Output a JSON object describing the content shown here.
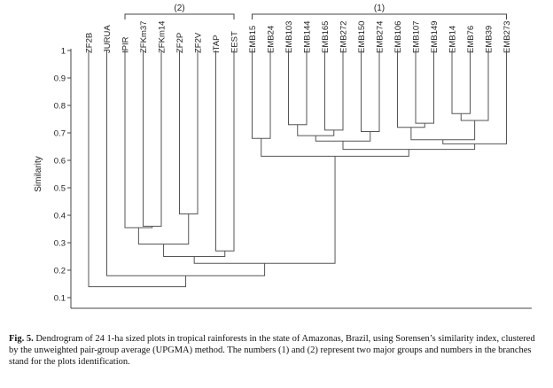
{
  "chart_data": {
    "type": "dendrogram",
    "ylabel": "Similarity",
    "ylim": [
      0.1,
      1
    ],
    "yticks": [
      1,
      0.9,
      0.8,
      0.7,
      0.6,
      0.5,
      0.4,
      0.3,
      0.2,
      0.1
    ],
    "leaves": [
      "ZF2B",
      "JURUA",
      "IPIR",
      "ZFKm37",
      "ZFKm14",
      "ZF2P",
      "ZF2V",
      "ITAP",
      "EEST",
      "EMB15",
      "EMB24",
      "EMB103",
      "EMB144",
      "EMB165",
      "EMB272",
      "EMB150",
      "EMB274",
      "EMB106",
      "EMB107",
      "EMB149",
      "EMB14",
      "EMB76",
      "EMB39",
      "EMB273"
    ],
    "groups": [
      {
        "label": "(2)",
        "from_leaf": 2,
        "to_leaf": 8
      },
      {
        "label": "(1)",
        "from_leaf": 9,
        "to_leaf": 23
      }
    ],
    "merges": [
      {
        "left": [
          "ZFKm37"
        ],
        "right": [
          "ZFKm14"
        ],
        "similarity": 0.36
      },
      {
        "left": [
          "IPIR"
        ],
        "right": [
          "ZFKm37",
          "ZFKm14"
        ],
        "similarity": 0.355
      },
      {
        "left": [
          "ZF2P"
        ],
        "right": [
          "ZF2V"
        ],
        "similarity": 0.405
      },
      {
        "left": [
          "IPIR",
          "ZFKm37",
          "ZFKm14"
        ],
        "right": [
          "ZF2P",
          "ZF2V"
        ],
        "similarity": 0.295
      },
      {
        "left": [
          "ITAP"
        ],
        "right": [
          "EEST"
        ],
        "similarity": 0.27
      },
      {
        "left": [
          "IPIR",
          "ZFKm37",
          "ZFKm14",
          "ZF2P",
          "ZF2V"
        ],
        "right": [
          "ITAP",
          "EEST"
        ],
        "similarity": 0.25
      },
      {
        "left": [
          "EMB15"
        ],
        "right": [
          "EMB24"
        ],
        "similarity": 0.68
      },
      {
        "left": [
          "EMB103"
        ],
        "right": [
          "EMB144"
        ],
        "similarity": 0.73
      },
      {
        "left": [
          "EMB165"
        ],
        "right": [
          "EMB272"
        ],
        "similarity": 0.71
      },
      {
        "left": [
          "EMB103",
          "EMB144"
        ],
        "right": [
          "EMB165",
          "EMB272"
        ],
        "similarity": 0.69
      },
      {
        "left": [
          "EMB150"
        ],
        "right": [
          "EMB274"
        ],
        "similarity": 0.705
      },
      {
        "left": [
          "EMB103",
          "EMB144",
          "EMB165",
          "EMB272"
        ],
        "right": [
          "EMB150",
          "EMB274"
        ],
        "similarity": 0.67
      },
      {
        "left": [
          "EMB107"
        ],
        "right": [
          "EMB149"
        ],
        "similarity": 0.735
      },
      {
        "left": [
          "EMB106"
        ],
        "right": [
          "EMB107",
          "EMB149"
        ],
        "similarity": 0.72
      },
      {
        "left": [
          "EMB14"
        ],
        "right": [
          "EMB76"
        ],
        "similarity": 0.77
      },
      {
        "left": [
          "EMB14",
          "EMB76"
        ],
        "right": [
          "EMB39"
        ],
        "similarity": 0.745
      },
      {
        "left": [
          "EMB106",
          "EMB107",
          "EMB149"
        ],
        "right": [
          "EMB14",
          "EMB76",
          "EMB39"
        ],
        "similarity": 0.675
      },
      {
        "left": [
          "EMB106",
          "EMB107",
          "EMB149",
          "EMB14",
          "EMB76",
          "EMB39"
        ],
        "right": [
          "EMB273"
        ],
        "similarity": 0.66
      },
      {
        "left": [
          "EMB103",
          "EMB144",
          "EMB165",
          "EMB272",
          "EMB150",
          "EMB274"
        ],
        "right": [
          "EMB106",
          "EMB107",
          "EMB149",
          "EMB14",
          "EMB76",
          "EMB39",
          "EMB273"
        ],
        "similarity": 0.64
      },
      {
        "left": [
          "EMB15",
          "EMB24"
        ],
        "right": [
          "EMB103",
          "EMB144",
          "EMB165",
          "EMB272",
          "EMB150",
          "EMB274",
          "EMB106",
          "EMB107",
          "EMB149",
          "EMB14",
          "EMB76",
          "EMB39",
          "EMB273"
        ],
        "similarity": 0.615
      },
      {
        "left": [
          "IPIR",
          "ZFKm37",
          "ZFKm14",
          "ZF2P",
          "ZF2V",
          "ITAP",
          "EEST"
        ],
        "right": [
          "EMB15",
          "EMB24",
          "EMB103",
          "EMB144",
          "EMB165",
          "EMB272",
          "EMB150",
          "EMB274",
          "EMB106",
          "EMB107",
          "EMB149",
          "EMB14",
          "EMB76",
          "EMB39",
          "EMB273"
        ],
        "similarity": 0.225
      },
      {
        "left": [
          "JURUA"
        ],
        "right": [
          "IPIR",
          "ZFKm37",
          "ZFKm14",
          "ZF2P",
          "ZF2V",
          "ITAP",
          "EEST",
          "EMB15",
          "EMB24",
          "EMB103",
          "EMB144",
          "EMB165",
          "EMB272",
          "EMB150",
          "EMB274",
          "EMB106",
          "EMB107",
          "EMB149",
          "EMB14",
          "EMB76",
          "EMB39",
          "EMB273"
        ],
        "similarity": 0.18
      },
      {
        "left": [
          "ZF2B"
        ],
        "right": [
          "JURUA",
          "IPIR",
          "ZFKm37",
          "ZFKm14",
          "ZF2P",
          "ZF2V",
          "ITAP",
          "EEST",
          "EMB15",
          "EMB24",
          "EMB103",
          "EMB144",
          "EMB165",
          "EMB272",
          "EMB150",
          "EMB274",
          "EMB106",
          "EMB107",
          "EMB149",
          "EMB14",
          "EMB76",
          "EMB39",
          "EMB273"
        ],
        "similarity": 0.14
      }
    ]
  },
  "caption": {
    "label": "Fig. 5.",
    "text": " Dendrogram of 24 1-ha sized plots in tropical rainforests in the state of Amazonas, Brazil, using Sorensen’s similarity index, clustered by the unweighted pair-group average (UPGMA) method. The numbers (1) and (2) represent two major groups and numbers in the branches stand for the plots identification."
  }
}
